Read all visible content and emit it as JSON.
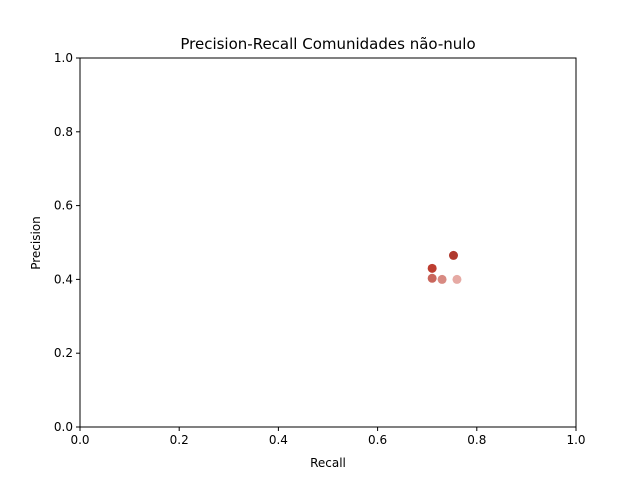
{
  "chart_data": {
    "type": "scatter",
    "title": "Precision-Recall Comunidades não-nulo",
    "xlabel": "Recall",
    "ylabel": "Precision",
    "xlim": [
      0.0,
      1.0
    ],
    "ylim": [
      0.0,
      1.0
    ],
    "xticks": [
      "0.0",
      "0.2",
      "0.4",
      "0.6",
      "0.8",
      "1.0"
    ],
    "yticks": [
      "0.0",
      "0.2",
      "0.4",
      "0.6",
      "0.8",
      "1.0"
    ],
    "grid": false,
    "legend": "none",
    "points": [
      {
        "x": 0.753,
        "y": 0.465,
        "color": "#b03a2e"
      },
      {
        "x": 0.71,
        "y": 0.43,
        "color": "#bd3d30"
      },
      {
        "x": 0.71,
        "y": 0.403,
        "color": "#c9665c"
      },
      {
        "x": 0.73,
        "y": 0.4,
        "color": "#d88a82"
      },
      {
        "x": 0.76,
        "y": 0.4,
        "color": "#e6aaa4"
      }
    ]
  }
}
